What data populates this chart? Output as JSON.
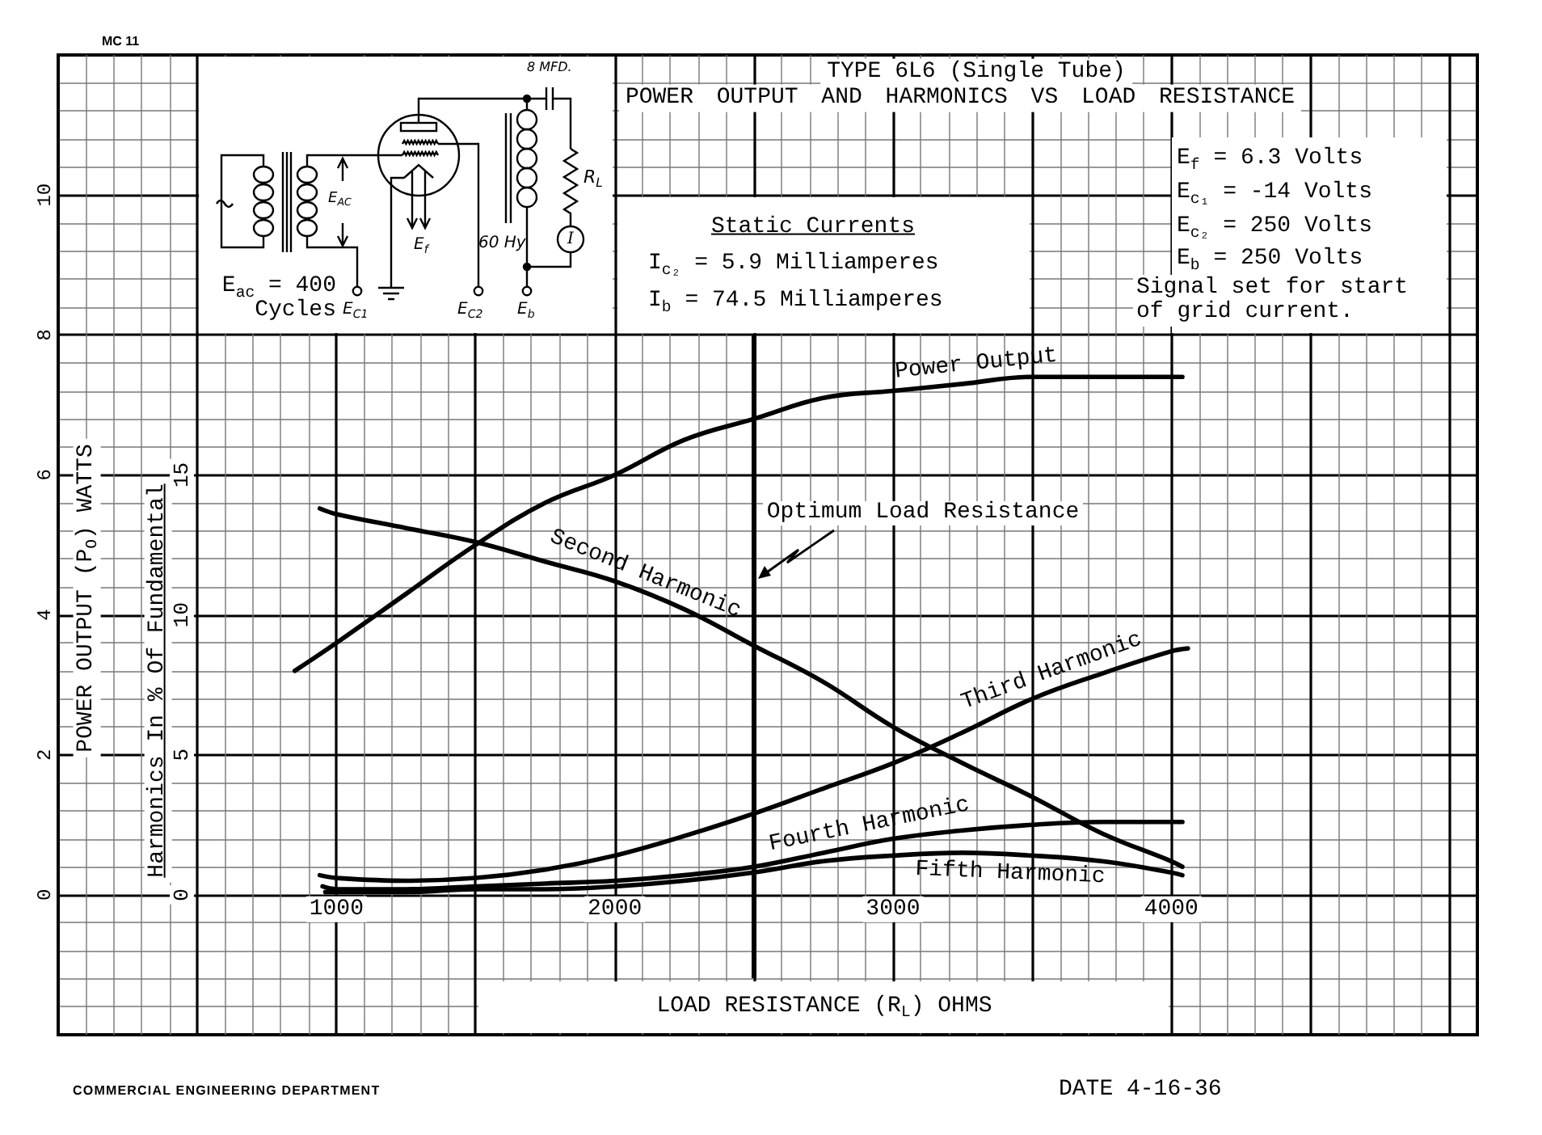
{
  "chart_data": {
    "type": "line",
    "title": "TYPE 6L6 (Single Tube)",
    "subtitle": "POWER OUTPUT AND HARMONICS VS LOAD RESISTANCE",
    "xlabel": "LOAD RESISTANCE (R$_{L}$) OHMS",
    "ylabel": "POWER OUTPUT (P$_{O}$) WATTS",
    "y2label": "Harmonics In % Of Fundamental",
    "xlim": [
      0,
      5100
    ],
    "xticks": [
      {
        "value": 0,
        "label": null
      },
      {
        "value": 500,
        "label": null
      },
      1000,
      {
        "value": 1500,
        "label": null
      },
      2000,
      {
        "value": 2500,
        "label": null
      },
      3000,
      {
        "value": 3500,
        "label": null
      },
      4000,
      {
        "value": 4500,
        "label": null
      },
      {
        "value": 5000,
        "label": null
      }
    ],
    "ylim": [
      -2,
      12
    ],
    "yticks": [
      0,
      2,
      4,
      6,
      8,
      10
    ],
    "y2lim": [
      -5,
      30
    ],
    "y2ticks": [
      0,
      5,
      10,
      15
    ],
    "grid": true,
    "series": [
      {
        "name": "Power Output",
        "color": "#000000",
        "x": [
          850,
          1000,
          1250,
          1500,
          1750,
          2000,
          2250,
          2500,
          2750,
          3000,
          3250,
          3500,
          3750,
          4000,
          4040
        ],
        "values": [
          3.2,
          3.6,
          4.3,
          5.0,
          5.6,
          6.0,
          6.5,
          6.8,
          7.1,
          7.2,
          7.3,
          7.4,
          7.4,
          7.4,
          7.4
        ]
      },
      {
        "name": "Second Harmonic",
        "color": "#000000",
        "axis": "y2",
        "x": [
          940,
          1000,
          1250,
          1500,
          1750,
          2000,
          2250,
          2500,
          2750,
          3000,
          3250,
          3500,
          3750,
          4000,
          4040
        ],
        "values": [
          13.8,
          13.6,
          13.1,
          12.6,
          11.9,
          11.2,
          10.2,
          8.9,
          7.6,
          6.0,
          4.7,
          3.5,
          2.2,
          1.2,
          1.0
        ]
      },
      {
        "name": "Third Harmonic",
        "color": "#000000",
        "axis": "y2",
        "x": [
          940,
          1000,
          1250,
          1500,
          1750,
          2000,
          2250,
          2500,
          2750,
          3000,
          3250,
          3500,
          3750,
          4000,
          4060
        ],
        "values": [
          0.7,
          0.6,
          0.5,
          0.6,
          0.9,
          1.4,
          2.1,
          2.9,
          3.8,
          4.7,
          5.8,
          7.0,
          7.9,
          8.7,
          8.8
        ]
      },
      {
        "name": "Fourth Harmonic",
        "color": "#000000",
        "axis": "y2",
        "x": [
          950,
          1000,
          1250,
          1500,
          1750,
          2000,
          2250,
          2500,
          2750,
          3000,
          3250,
          3500,
          3750,
          4000,
          4040
        ],
        "values": [
          0.3,
          0.2,
          0.2,
          0.3,
          0.4,
          0.5,
          0.7,
          1.0,
          1.5,
          2.0,
          2.3,
          2.5,
          2.6,
          2.6,
          2.6
        ]
      },
      {
        "name": "Fifth Harmonic",
        "color": "#000000",
        "axis": "y2",
        "x": [
          960,
          1000,
          1250,
          1500,
          1750,
          2000,
          2250,
          2500,
          2750,
          3000,
          3250,
          3500,
          3750,
          4000,
          4040
        ],
        "values": [
          0.1,
          0.1,
          0.1,
          0.2,
          0.2,
          0.3,
          0.5,
          0.8,
          1.2,
          1.4,
          1.5,
          1.4,
          1.2,
          0.8,
          0.7
        ]
      }
    ],
    "ref_lines": [
      {
        "axis": "x",
        "value": 2500,
        "label": "Optimum Load Resistance"
      }
    ],
    "annotations": [
      "MC 11",
      "8 MFD.",
      "60 Hy",
      "R$_{L}$",
      "I",
      "E$_{AC}$",
      "E$_{f}$",
      "E$_{C1}$",
      "E$_{C2}$",
      "E$_{b}$",
      "E$_{ac}$ = 400 Cycles",
      "Static Currents",
      "I$_{c₂}$ = 5.9 Milliamperes",
      "I$_{b}$ = 74.5 Milliamperes",
      "E$_{f}$ = 6.3 Volts",
      "E$_{c₁}$ = -14 Volts",
      "E$_{c₂}$ = 250 Volts",
      "E$_{b}$ = 250 Volts",
      "Signal set for start of grid current.",
      "COMMERCIAL ENGINEERING DEPARTMENT",
      "DATE 4-16-36"
    ]
  }
}
